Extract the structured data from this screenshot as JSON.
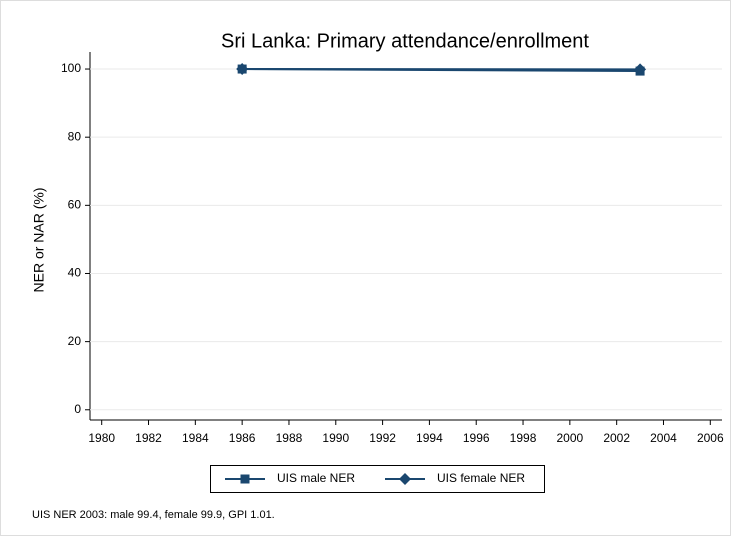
{
  "chart_data": {
    "type": "line",
    "title": "Sri Lanka: Primary attendance/enrollment",
    "y_label": "NER or NAR (%)",
    "note": "UIS NER 2003: male 99.4, female 99.9, GPI 1.01.",
    "x": [
      1986,
      2003
    ],
    "series": [
      {
        "name": "UIS male NER",
        "color": "#1a476f",
        "marker": "square",
        "values": [
          100,
          99.4
        ]
      },
      {
        "name": "UIS female NER",
        "color": "#1a476f",
        "marker": "diamond",
        "values": [
          100,
          99.9
        ]
      }
    ],
    "xlim": [
      1979.5,
      2006.5
    ],
    "xticks": [
      1980,
      1982,
      1984,
      1986,
      1988,
      1990,
      1992,
      1994,
      1996,
      1998,
      2000,
      2002,
      2004,
      2006
    ],
    "ylim": [
      -3,
      105
    ],
    "yticks": [
      0,
      20,
      40,
      60,
      80,
      100
    ],
    "grid": true,
    "legend": "bottom"
  }
}
